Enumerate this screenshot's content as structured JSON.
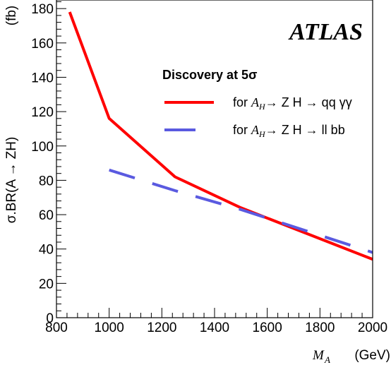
{
  "chart_data": {
    "type": "line",
    "brand": "ATLAS",
    "xlabel_symbol": "M",
    "xlabel_sub": "A",
    "xlabel_unit": "(GeV)",
    "ylabel": "σ.BR(A  → ZH)",
    "ylabel_unit": "(fb)",
    "xlim": [
      800,
      2000
    ],
    "ylim": [
      0,
      185
    ],
    "xticks": [
      800,
      1000,
      1200,
      1400,
      1600,
      1800,
      2000
    ],
    "yticks": [
      0,
      20,
      40,
      60,
      80,
      100,
      120,
      140,
      160,
      180
    ],
    "legend": {
      "title": "Discovery at 5σ",
      "placement": "top-right"
    },
    "series": [
      {
        "name_prefix": "for ",
        "name_sym": "A",
        "name_sub": "H",
        "name_suffix": "→ Z H → qq γγ",
        "color": "#ff0000",
        "style": "solid",
        "x": [
          850,
          1000,
          1250,
          1500,
          2000
        ],
        "y": [
          178,
          116,
          82,
          64,
          34
        ]
      },
      {
        "name_prefix": "for ",
        "name_sym": "A",
        "name_sub": "H",
        "name_suffix": "→ Z H → ll bb",
        "color": "#5a5ae0",
        "style": "dashed",
        "x": [
          1000,
          1250,
          1500,
          2000
        ],
        "y": [
          86,
          74,
          63,
          38
        ]
      }
    ]
  }
}
